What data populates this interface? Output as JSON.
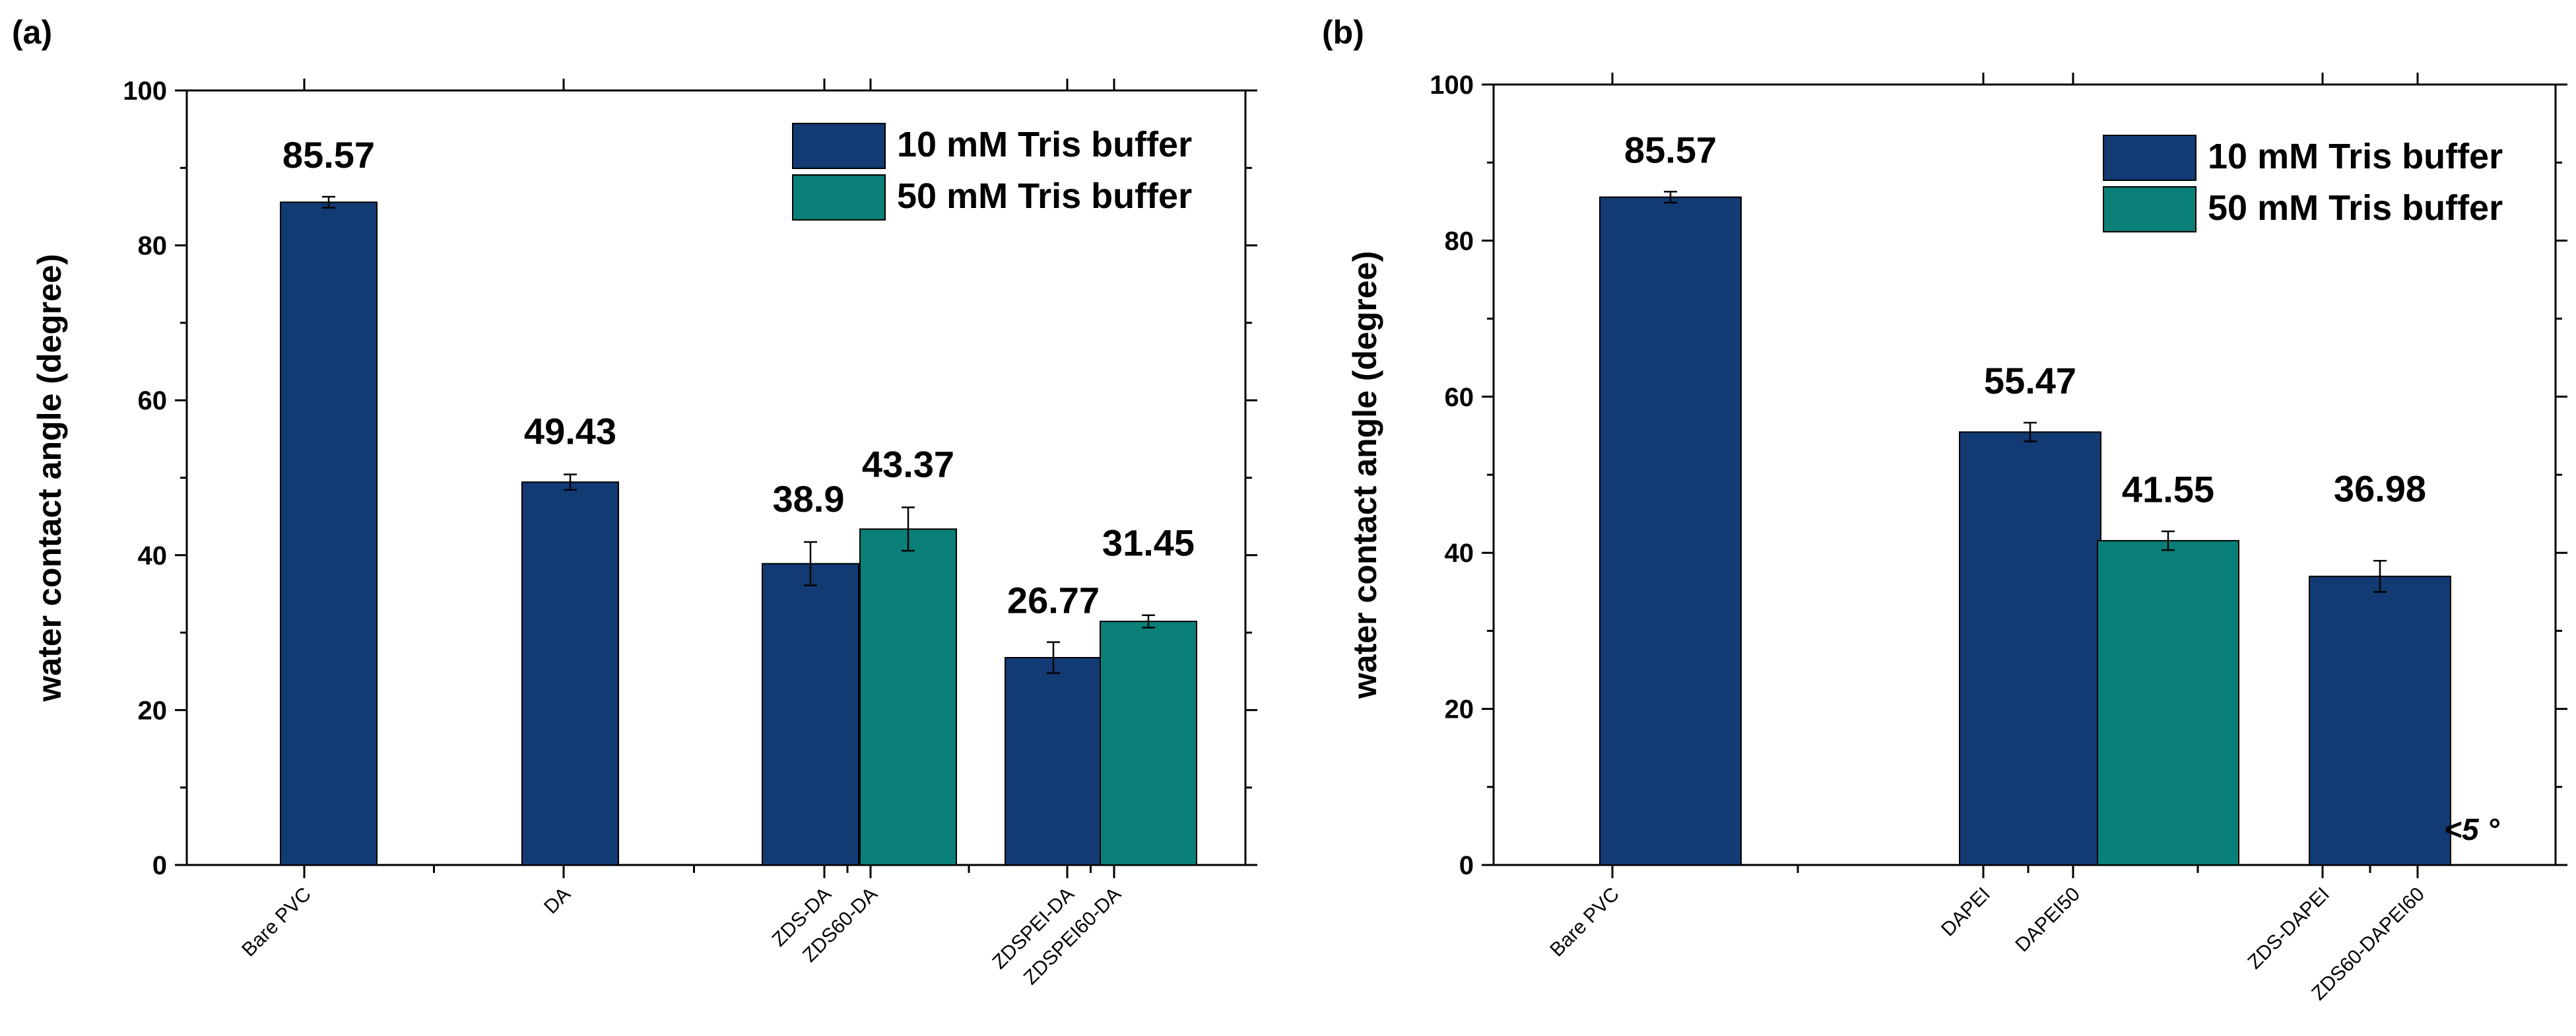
{
  "colors": {
    "tris10": "#123a73",
    "tris50": "#0a7f78",
    "axis": "#000000"
  },
  "chart_data": [
    {
      "type": "bar",
      "panel_label": "(a)",
      "ylabel": "water contact angle (degree)",
      "ylim": [
        0,
        100
      ],
      "yticks": [
        0,
        20,
        40,
        60,
        80,
        100
      ],
      "legend_position": "top-right",
      "categories": [
        "Bare PVC",
        "DA",
        "ZDS-DA",
        "ZDS60-DA",
        "ZDSPEI-DA",
        "ZDSPEI60-DA"
      ],
      "series": [
        {
          "name": "10 mM Tris buffer",
          "color": "#123a73"
        },
        {
          "name": "50 mM Tris buffer",
          "color": "#0a7f78"
        }
      ],
      "bars": [
        {
          "category": "Bare PVC",
          "series": 0,
          "value": 85.57,
          "error": 0.7,
          "label": "85.57"
        },
        {
          "category": "DA",
          "series": 0,
          "value": 49.43,
          "error": 1.0,
          "label": "49.43"
        },
        {
          "category": "ZDS-DA",
          "series": 0,
          "value": 38.9,
          "error": 2.8,
          "label": "38.9"
        },
        {
          "category": "ZDS60-DA",
          "series": 1,
          "value": 43.37,
          "error": 2.8,
          "label": "43.37"
        },
        {
          "category": "ZDSPEI-DA",
          "series": 0,
          "value": 26.77,
          "error": 2.0,
          "label": "26.77"
        },
        {
          "category": "ZDSPEI60-DA",
          "series": 1,
          "value": 31.45,
          "error": 0.8,
          "label": "31.45"
        }
      ]
    },
    {
      "type": "bar",
      "panel_label": "(b)",
      "ylabel": "water contact angle (degree)",
      "ylim": [
        0,
        100
      ],
      "yticks": [
        0,
        20,
        40,
        60,
        80,
        100
      ],
      "legend_position": "top-right",
      "categories": [
        "Bare PVC",
        "DAPEI",
        "DAPEI50",
        "ZDS-DAPEI",
        "ZDS60-DAPEI60"
      ],
      "series": [
        {
          "name": "10 mM Tris buffer",
          "color": "#123a73"
        },
        {
          "name": "50 mM Tris buffer",
          "color": "#0a7f78"
        }
      ],
      "bars": [
        {
          "category": "Bare PVC",
          "series": 0,
          "value": 85.57,
          "error": 0.7,
          "label": "85.57"
        },
        {
          "category": "DAPEI",
          "series": 0,
          "value": 55.47,
          "error": 1.2,
          "label": "55.47"
        },
        {
          "category": "DAPEI50",
          "series": 1,
          "value": 41.55,
          "error": 1.2,
          "label": "41.55"
        },
        {
          "category": "ZDS-DAPEI",
          "series": 0,
          "value": 36.98,
          "error": 2.0,
          "label": "36.98"
        }
      ],
      "annotations": [
        {
          "category": "ZDS60-DAPEI60",
          "text": "<5 °"
        }
      ]
    }
  ]
}
